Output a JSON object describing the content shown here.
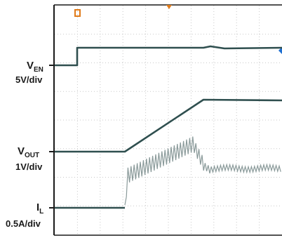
{
  "chart_data": {
    "type": "line",
    "series": [
      {
        "name": "VEN",
        "scale": "5V/div",
        "color": "#2f4f4f"
      },
      {
        "name": "VOUT",
        "scale": "1V/div",
        "color": "#2f4f4f"
      },
      {
        "name": "IL",
        "scale": "0.5A/div",
        "color": "#2f4f4f",
        "ripple_color": "#8a9a9a"
      }
    ],
    "labels": {
      "ven_main": "V",
      "ven_sub": "EN",
      "ven_scale": "5V/div",
      "vout_main": "V",
      "vout_sub": "OUT",
      "vout_scale": "1V/div",
      "il_main": "I",
      "il_sub": "L",
      "il_scale": "0.5A/div"
    },
    "trigger_marker_color": "#e07b1a",
    "grid": true,
    "grid_divisions": {
      "x": 10,
      "y": 8
    },
    "xlabel": "",
    "ylabel": ""
  }
}
